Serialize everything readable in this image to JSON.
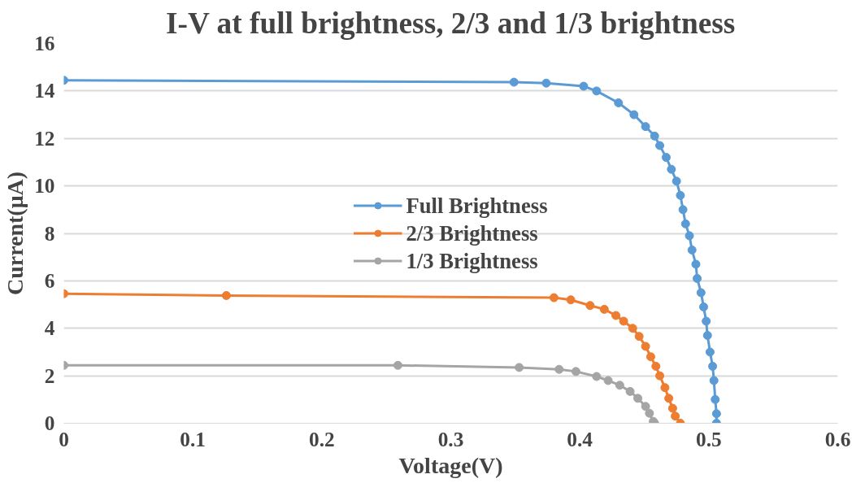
{
  "chart_data": {
    "type": "line",
    "title": "I-V at full brightness, 2/3 and 1/3 brightness",
    "xlabel": "Voltage(V)",
    "ylabel": "Current(μA)",
    "xlim": [
      0,
      0.6
    ],
    "xticks": [
      0,
      0.1,
      0.2,
      0.3,
      0.4,
      0.5,
      0.6
    ],
    "ylim": [
      0,
      16
    ],
    "yticks": [
      0,
      2,
      4,
      6,
      8,
      10,
      12,
      14,
      16
    ],
    "grid": "y",
    "legend": "center",
    "marker": "circle",
    "line_style": "solid",
    "series": [
      {
        "name": "Full Brightness",
        "color": "#5b9bd5",
        "x": [
          0,
          0.349,
          0.374,
          0.403,
          0.413,
          0.43,
          0.442,
          0.451,
          0.458,
          0.462,
          0.467,
          0.471,
          0.475,
          0.478,
          0.48,
          0.482,
          0.485,
          0.487,
          0.49,
          0.491,
          0.494,
          0.496,
          0.498,
          0.499,
          0.501,
          0.503,
          0.504,
          0.505,
          0.506,
          0.506
        ],
        "values": [
          14.45,
          14.37,
          14.33,
          14.2,
          14.0,
          13.5,
          13.0,
          12.5,
          12.1,
          11.7,
          11.2,
          10.7,
          10.2,
          9.6,
          9.0,
          8.4,
          7.9,
          7.3,
          6.7,
          6.1,
          5.5,
          4.9,
          4.3,
          3.7,
          3.0,
          2.4,
          1.8,
          1.0,
          0.4,
          0
        ]
      },
      {
        "name": "2/3 Brightness",
        "color": "#ed7d31",
        "x": [
          0,
          0.126,
          0.38,
          0.393,
          0.408,
          0.419,
          0.428,
          0.434,
          0.441,
          0.446,
          0.451,
          0.455,
          0.459,
          0.462,
          0.466,
          0.469,
          0.472,
          0.474,
          0.478
        ],
        "values": [
          5.46,
          5.38,
          5.29,
          5.2,
          4.96,
          4.8,
          4.54,
          4.3,
          4.0,
          3.66,
          3.24,
          2.8,
          2.4,
          2.0,
          1.5,
          1.05,
          0.63,
          0.3,
          0
        ]
      },
      {
        "name": "1/3 Brightness",
        "color": "#a5a5a5",
        "x": [
          0,
          0.259,
          0.353,
          0.384,
          0.397,
          0.413,
          0.422,
          0.431,
          0.439,
          0.445,
          0.451,
          0.454,
          0.457,
          0.458
        ],
        "values": [
          2.44,
          2.44,
          2.35,
          2.27,
          2.18,
          1.97,
          1.8,
          1.6,
          1.34,
          1.05,
          0.71,
          0.42,
          0.08,
          0
        ]
      }
    ]
  }
}
